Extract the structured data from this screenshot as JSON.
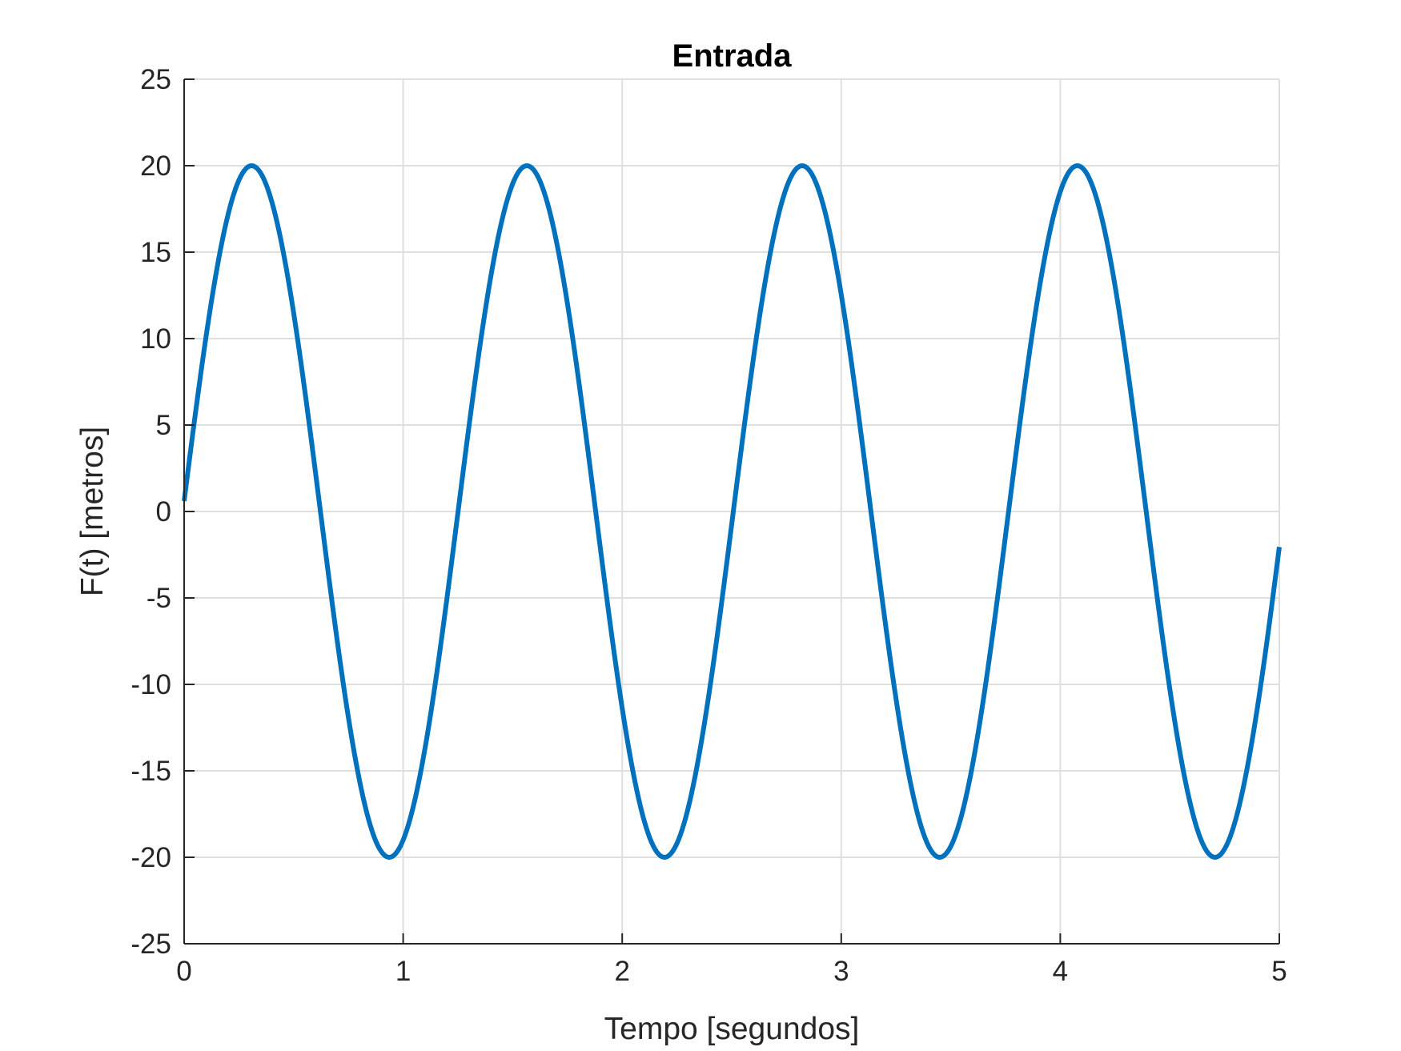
{
  "chart_data": {
    "type": "line",
    "title": "Entrada",
    "xlabel": "Tempo [segundos]",
    "ylabel": "F(t) [metros]",
    "xlim": [
      0,
      5
    ],
    "ylim": [
      -25,
      25
    ],
    "xticks": [
      0,
      1,
      2,
      3,
      4,
      5
    ],
    "yticks": [
      25,
      20,
      15,
      10,
      5,
      0,
      -5,
      -10,
      -15,
      -20,
      -25
    ],
    "xtick_labels": [
      "0",
      "1",
      "2",
      "3",
      "4",
      "5"
    ],
    "ytick_labels": [
      "25",
      "20",
      "15",
      "10",
      "5",
      "0",
      "-5",
      "-10",
      "-15",
      "-20",
      "-25"
    ],
    "grid": true,
    "series": [
      {
        "color": "#0072bd",
        "function": {
          "form": "A*sin(w*t+phi)",
          "A": 20,
          "w": 5.0,
          "phi": 0.03
        },
        "x": [
          0,
          0.1,
          0.2,
          0.31,
          0.4,
          0.5,
          0.6,
          0.7,
          0.8,
          0.94,
          1.05,
          1.2,
          1.35,
          1.57,
          1.8,
          2.0,
          2.2,
          2.4,
          2.6,
          2.82,
          3.0,
          3.2,
          3.45,
          3.7,
          3.9,
          4.08,
          4.3,
          4.5,
          4.71,
          4.9,
          5.0
        ],
        "y": [
          0.6,
          9.9,
          17.1,
          20.0,
          18.5,
          12.4,
          2.9,
          -6.9,
          -15.2,
          -20.0,
          -17.4,
          -6.8,
          7.0,
          20.0,
          10.0,
          -10.4,
          -20.0,
          -10.3,
          7.7,
          20.0,
          12.5,
          -3.0,
          -20.0,
          -2.4,
          16.1,
          20.0,
          9.3,
          -10.9,
          -20.0,
          -12.5,
          -2.2
        ]
      }
    ]
  }
}
